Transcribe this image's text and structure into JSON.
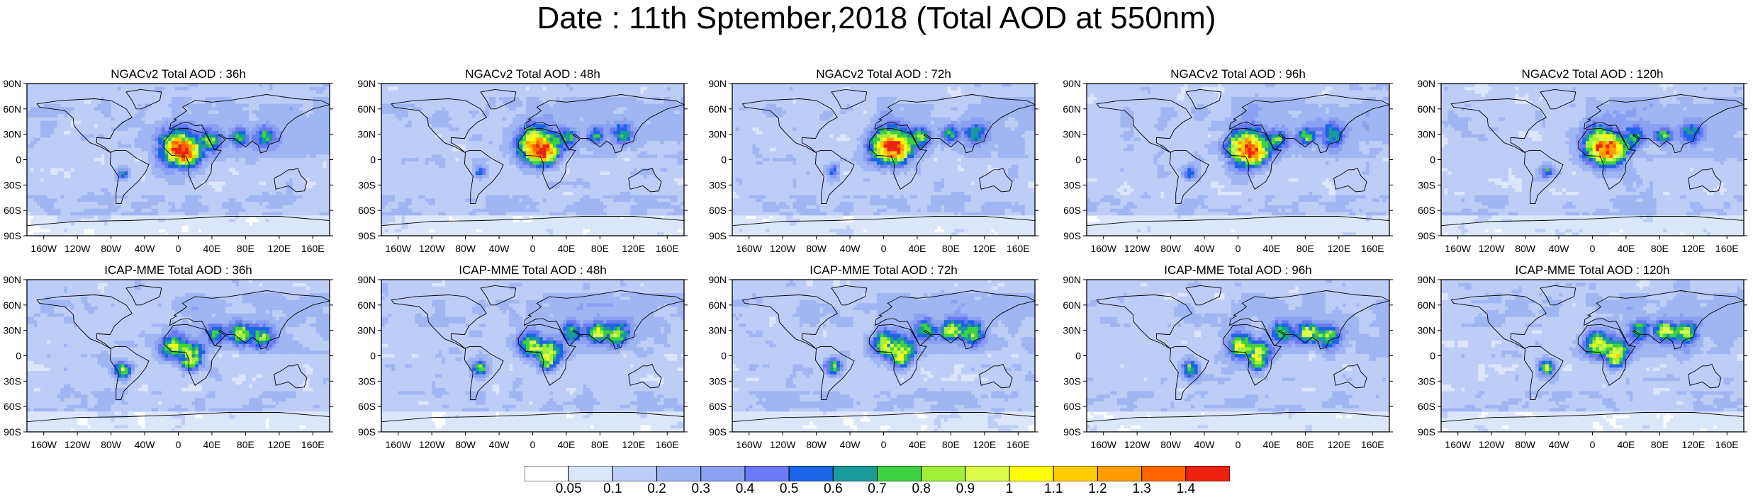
{
  "title": "Date : 11th Sptember,2018 (Total AOD at 550nm)",
  "panels": [
    {
      "title": "NGACv2 Total AOD : 36h"
    },
    {
      "title": "NGACv2 Total AOD : 48h"
    },
    {
      "title": "NGACv2 Total AOD : 72h"
    },
    {
      "title": "NGACv2 Total AOD : 96h"
    },
    {
      "title": "NGACv2 Total AOD : 120h"
    },
    {
      "title": "ICAP-MME Total AOD : 36h"
    },
    {
      "title": "ICAP-MME Total AOD : 48h"
    },
    {
      "title": "ICAP-MME Total AOD : 72h"
    },
    {
      "title": "ICAP-MME Total AOD : 96h"
    },
    {
      "title": "ICAP-MME Total AOD : 120h"
    }
  ],
  "axes": {
    "lat_ticks": [
      "90N",
      "60N",
      "30N",
      "0",
      "30S",
      "60S",
      "90S"
    ],
    "lon_ticks": [
      "160W",
      "120W",
      "80W",
      "40W",
      "0",
      "40E",
      "80E",
      "120E",
      "160E"
    ]
  },
  "colorbar": {
    "labels": [
      "0.05",
      "0.1",
      "0.2",
      "0.3",
      "0.4",
      "0.5",
      "0.6",
      "0.7",
      "0.8",
      "0.9",
      "1",
      "1.1",
      "1.2",
      "1.3",
      "1.4"
    ],
    "colors": [
      "#ffffff",
      "#dce6fb",
      "#bccdf6",
      "#9fb6f3",
      "#8aa1f2",
      "#6a7af2",
      "#1c64e8",
      "#1a9a9a",
      "#3fd13f",
      "#a3ee3a",
      "#dcfc4c",
      "#ffff00",
      "#ffcc00",
      "#ff9d00",
      "#ff6400",
      "#ee2211"
    ]
  }
}
